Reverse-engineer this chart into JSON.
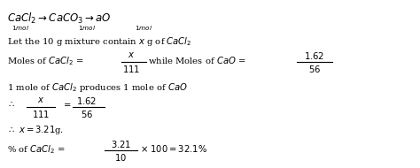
{
  "background_color": "#ffffff",
  "figsize": [
    4.74,
    1.9
  ],
  "dpi": 100,
  "fs_main": 7.2,
  "fs_small": 5.2,
  "fs_title": 8.5
}
